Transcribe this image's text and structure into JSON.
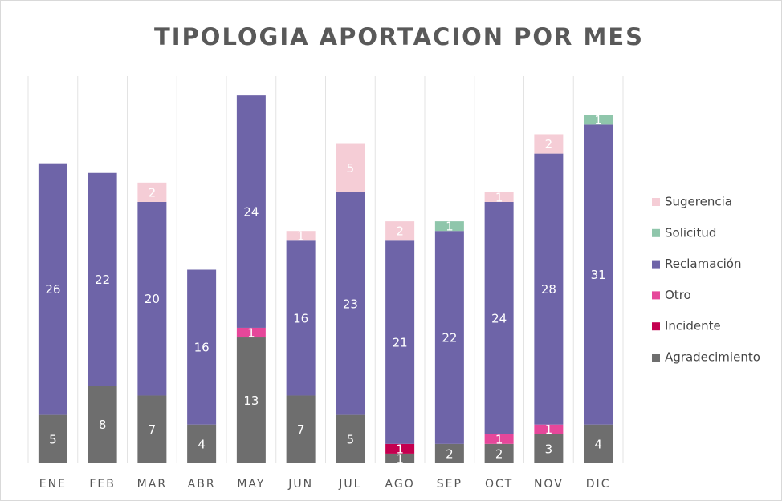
{
  "chart_data": {
    "type": "stacked_bar",
    "title": "TIPOLOGIA APORTACION POR MES",
    "categories": [
      "ENE",
      "FEB",
      "MAR",
      "ABR",
      "MAY",
      "JUN",
      "JUL",
      "AGO",
      "SEP",
      "OCT",
      "NOV",
      "DIC"
    ],
    "ylim": [
      0,
      40
    ],
    "grid": true,
    "legend": "right",
    "series": [
      {
        "name": "Agradecimiento",
        "color": "#6e6e6e",
        "values": [
          5,
          8,
          7,
          4,
          13,
          7,
          5,
          1,
          2,
          2,
          3,
          4
        ]
      },
      {
        "name": "Incidente",
        "color": "#c4004f",
        "values": [
          null,
          null,
          null,
          null,
          null,
          null,
          null,
          1,
          null,
          null,
          null,
          null
        ]
      },
      {
        "name": "Otro",
        "color": "#e6479a",
        "values": [
          null,
          null,
          null,
          null,
          1,
          null,
          null,
          null,
          null,
          1,
          1,
          null
        ]
      },
      {
        "name": "Reclamación",
        "color": "#6e64a8",
        "values": [
          26,
          22,
          20,
          16,
          24,
          16,
          23,
          21,
          22,
          24,
          28,
          31
        ]
      },
      {
        "name": "Solicitud",
        "color": "#8fc6ab",
        "values": [
          null,
          null,
          null,
          null,
          null,
          null,
          null,
          null,
          1,
          null,
          null,
          1
        ]
      },
      {
        "name": "Sugerencia",
        "color": "#f5cdd6",
        "values": [
          null,
          null,
          2,
          null,
          null,
          1,
          5,
          2,
          null,
          1,
          2,
          null
        ]
      }
    ]
  }
}
